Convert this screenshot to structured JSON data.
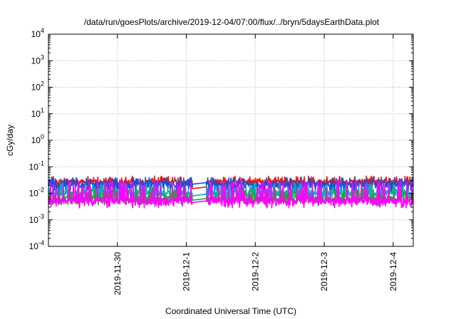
{
  "chart_data": {
    "type": "line",
    "title": "/data/run/goesPlots/archive/2019-12-04/07:00/flux/../bryn/5daysEarthData.plot",
    "xlabel": "Coordinated Universal Time (UTC)",
    "ylabel": "cGy/day",
    "yscale": "log",
    "ylim": [
      0.0001,
      10000
    ],
    "y_ticks": [
      {
        "base": "10",
        "exp": "-4"
      },
      {
        "base": "10",
        "exp": "-3"
      },
      {
        "base": "10",
        "exp": "-2"
      },
      {
        "base": "10",
        "exp": "-1"
      },
      {
        "base": "10",
        "exp": "0"
      },
      {
        "base": "10",
        "exp": "1"
      },
      {
        "base": "10",
        "exp": "2"
      },
      {
        "base": "10",
        "exp": "3"
      },
      {
        "base": "10",
        "exp": "4"
      }
    ],
    "xlim": [
      "2019-11-29",
      "2019-12-04 07:00"
    ],
    "x_ticks": [
      "2019-11-30",
      "2019-12-1",
      "2019-12-2",
      "2019-12-3",
      "2019-12-4"
    ],
    "grid": true,
    "gap": [
      "2019-12-01 02:00",
      "2019-12-01 07:00"
    ],
    "series": [
      {
        "color": "#e41a1c",
        "base": 0.025,
        "peak": 0.045,
        "low": 0.02,
        "gap_level": 0.015,
        "dip": false
      },
      {
        "color": "#1a4fd8",
        "base": 0.02,
        "peak": 0.04,
        "low": 0.012,
        "gap_level": 0.022,
        "dip": true
      },
      {
        "color": "#00b3b3",
        "base": 0.01,
        "peak": 0.025,
        "low": 0.007,
        "gap_level": 0.008,
        "dip": true
      },
      {
        "color": "#2ca02c",
        "base": 0.006,
        "peak": 0.015,
        "low": 0.0045,
        "gap_level": 0.0055,
        "dip": true
      },
      {
        "color": "#ff00ff",
        "base": 0.005,
        "peak": 0.03,
        "low": 0.0035,
        "gap_level": 0.0045,
        "dip": true
      }
    ]
  }
}
